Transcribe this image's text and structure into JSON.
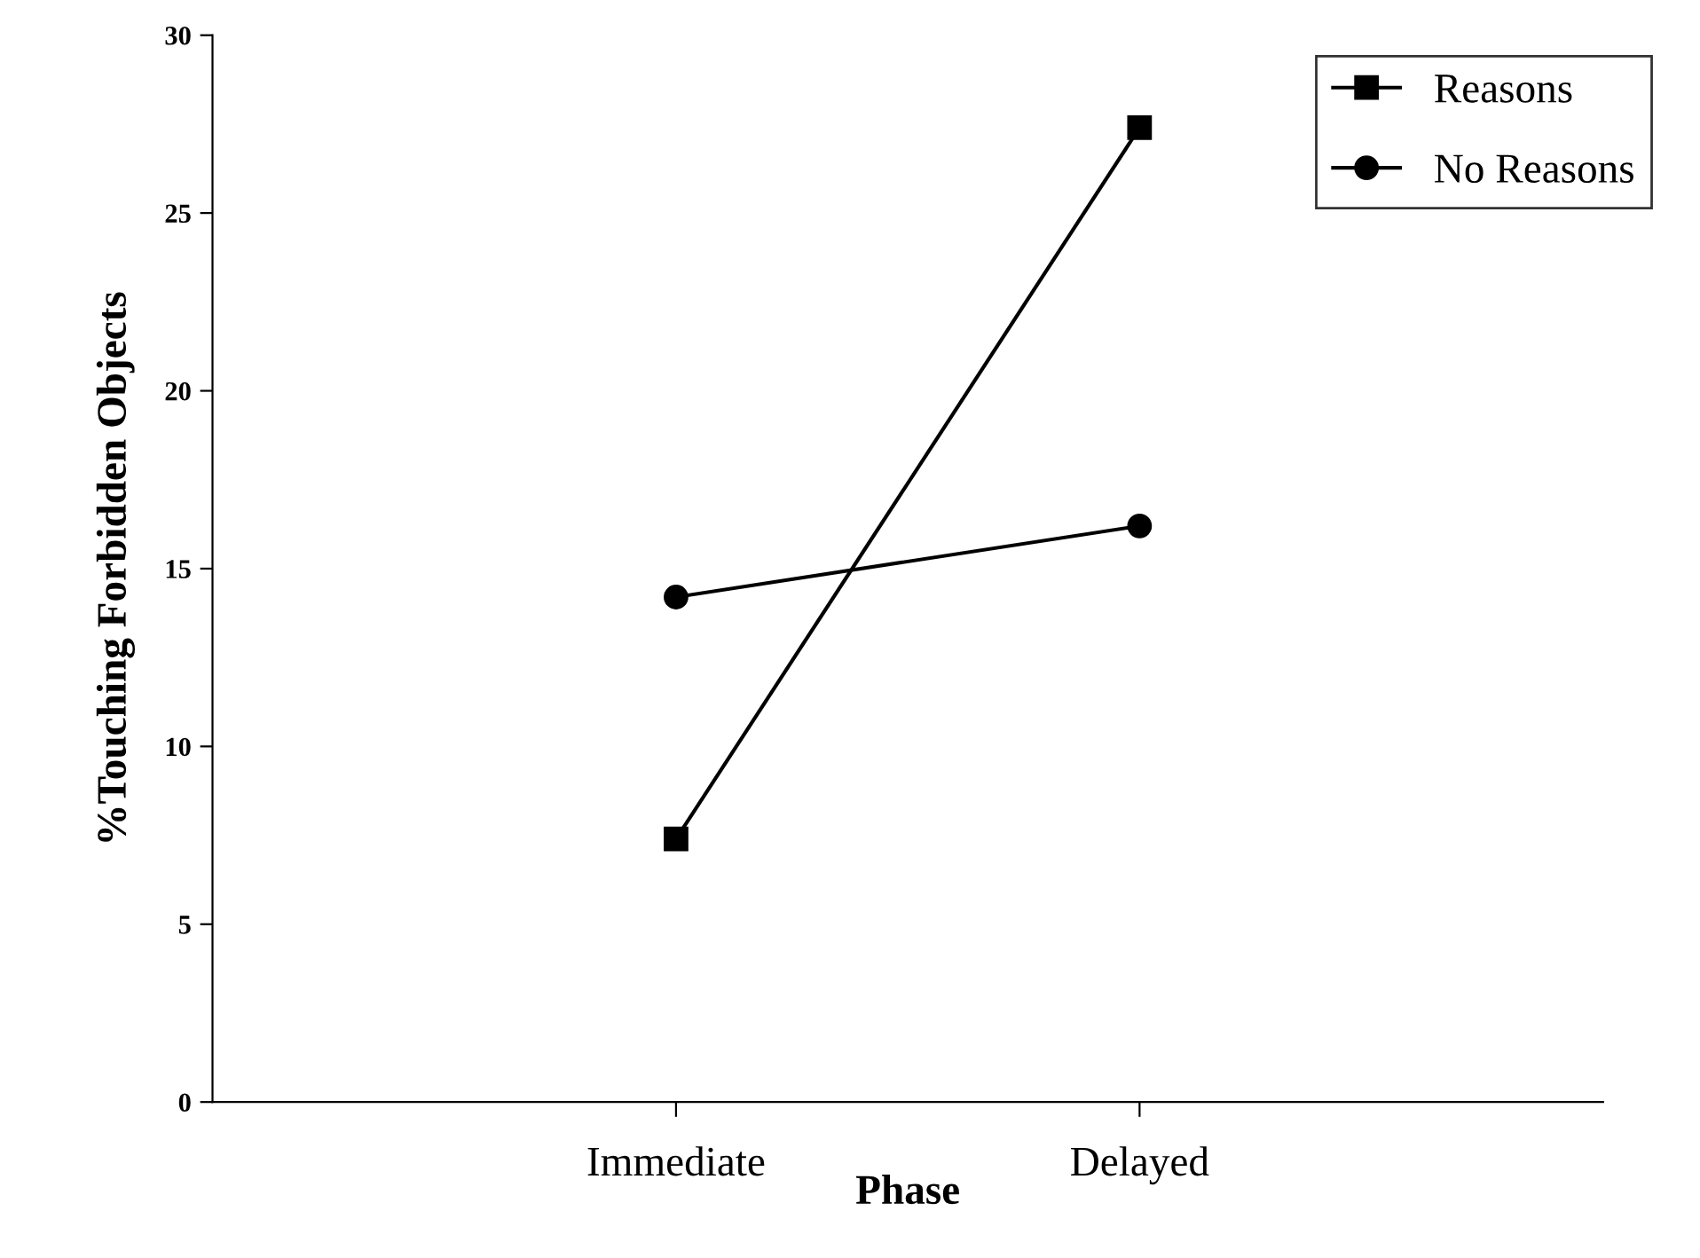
{
  "chart_data": {
    "type": "line",
    "xlabel": "Phase",
    "ylabel": "%Touching Forbidden Objects",
    "categories": [
      "Immediate",
      "Delayed"
    ],
    "series": [
      {
        "name": "Reasons",
        "color": "#000000",
        "values": [
          7.4,
          27.4
        ],
        "marker": "square"
      },
      {
        "name": "No Reasons",
        "color": "#000000",
        "values": [
          14.2,
          16.2
        ],
        "marker": "circle"
      }
    ],
    "ylim": [
      0,
      30
    ],
    "yticks": [
      0,
      5,
      10,
      15,
      20,
      25,
      30
    ],
    "grid": false,
    "legend": "top right",
    "line_style": "solid"
  }
}
